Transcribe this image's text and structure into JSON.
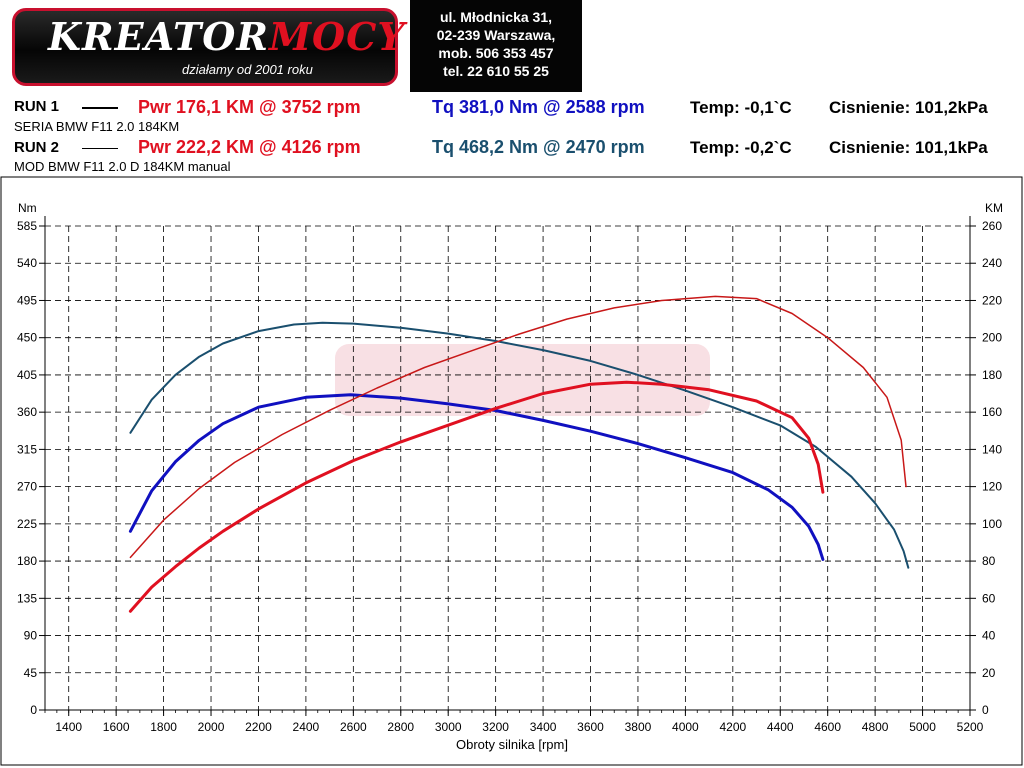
{
  "header": {
    "brand_prefix": "KREATOR",
    "brand_suffix": "MOCY",
    "tagline": "działamy od 2001 roku",
    "address": [
      "ul. Młodnicka 31,",
      "02-239  Warszawa,",
      "mob.  506 353 457",
      "tel.  22 610 55 25"
    ]
  },
  "runs": [
    {
      "label": "RUN 1",
      "description": "SERIA BMW F11 2.0 184KM",
      "pwr": "Pwr  176,1 KM @ 3752 rpm",
      "tq": "Tq 381,0 Nm @ 2588 rpm",
      "temp": "Temp: -0,1`C",
      "pressure": "Cisnienie: 101,2kPa"
    },
    {
      "label": "RUN 2",
      "description": "MOD  BMW F11 2.0 D 184KM manual",
      "pwr": "Pwr  222,2 KM @ 4126 rpm",
      "tq": "Tq 468,2 Nm @ 2470 rpm",
      "temp": "Temp: -0,2`C",
      "pressure": "Cisnienie: 101,1kPa"
    }
  ],
  "colors": {
    "pwr_run1": "#e01020",
    "pwr_run2": "#c81818",
    "tq_run1": "#1010c0",
    "tq_run2": "#1a4f6e"
  },
  "chart_data": {
    "type": "line",
    "xlabel": "Obroty silnika [rpm]",
    "ylabel_left": "Nm",
    "ylabel_right": "KM",
    "xlim": [
      1300,
      5200
    ],
    "ylim_left": [
      0,
      585
    ],
    "ylim_right": [
      0,
      260
    ],
    "x_ticks": [
      1400,
      1600,
      1800,
      2000,
      2200,
      2400,
      2600,
      2800,
      3000,
      3200,
      3400,
      3600,
      3800,
      4000,
      4200,
      4400,
      4600,
      4800,
      5000,
      5200
    ],
    "y_left_ticks": [
      0,
      45,
      90,
      135,
      180,
      225,
      270,
      315,
      360,
      405,
      450,
      495,
      540,
      585
    ],
    "y_right_ticks": [
      0,
      20,
      40,
      60,
      80,
      100,
      120,
      140,
      160,
      180,
      200,
      220,
      240,
      260
    ],
    "grid": true,
    "series": [
      {
        "axis": "left",
        "color_key": "tq_run1",
        "width": 3,
        "x": [
          1660,
          1750,
          1850,
          1950,
          2050,
          2200,
          2400,
          2588,
          2800,
          3000,
          3200,
          3400,
          3600,
          3800,
          4000,
          4200,
          4350,
          4450,
          4520,
          4560,
          4580
        ],
        "y": [
          216,
          265,
          300,
          326,
          346,
          366,
          378,
          381,
          377,
          370,
          362,
          350,
          337,
          322,
          305,
          287,
          266,
          245,
          222,
          200,
          182
        ]
      },
      {
        "axis": "left",
        "color_key": "tq_run2",
        "width": 2,
        "x": [
          1660,
          1750,
          1850,
          1950,
          2050,
          2200,
          2350,
          2470,
          2600,
          2800,
          3000,
          3200,
          3400,
          3600,
          3800,
          4000,
          4200,
          4400,
          4550,
          4700,
          4800,
          4880,
          4920,
          4940
        ],
        "y": [
          335,
          375,
          405,
          427,
          443,
          458,
          466,
          468,
          467,
          462,
          455,
          446,
          435,
          422,
          405,
          386,
          366,
          344,
          318,
          282,
          250,
          218,
          192,
          172
        ]
      },
      {
        "axis": "right",
        "color_key": "pwr_run1",
        "width": 3,
        "x": [
          1660,
          1750,
          1850,
          1950,
          2050,
          2200,
          2400,
          2600,
          2800,
          3000,
          3200,
          3400,
          3600,
          3752,
          3900,
          4100,
          4300,
          4450,
          4520,
          4560,
          4580
        ],
        "y": [
          53,
          66,
          77,
          87,
          96,
          108,
          122,
          134,
          144,
          153,
          162,
          170,
          175,
          176.1,
          175,
          172,
          166,
          157,
          146,
          132,
          117
        ]
      },
      {
        "axis": "right",
        "color_key": "pwr_run2",
        "width": 1.5,
        "x": [
          1660,
          1800,
          1950,
          2100,
          2300,
          2500,
          2700,
          2900,
          3100,
          3300,
          3500,
          3700,
          3900,
          4126,
          4300,
          4450,
          4600,
          4750,
          4850,
          4910,
          4930
        ],
        "y": [
          82,
          102,
          119,
          133,
          148,
          161,
          173,
          184,
          193,
          202,
          210,
          216,
          220,
          222.2,
          221,
          213,
          200,
          184,
          168,
          145,
          120
        ]
      }
    ]
  }
}
